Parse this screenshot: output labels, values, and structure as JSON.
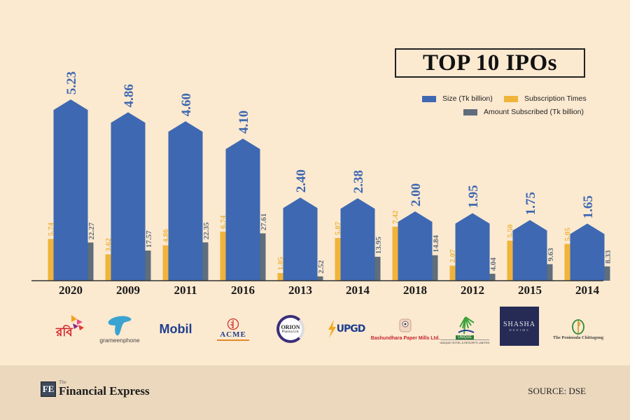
{
  "chart_data": {
    "type": "bar",
    "title": "TOP 10 IPOs",
    "categories": [
      "2020",
      "2009",
      "2011",
      "2016",
      "2013",
      "2014",
      "2018",
      "2012",
      "2015",
      "2014"
    ],
    "series": [
      {
        "name": "Size (Tk billion)",
        "color": "#3e68b1",
        "values": [
          5.23,
          4.86,
          4.6,
          4.1,
          2.4,
          2.38,
          2.0,
          1.95,
          1.75,
          1.65
        ],
        "labels": [
          "5.23",
          "4.86",
          "4.60",
          "4.10",
          "2.40",
          "2.38",
          "2.00",
          "1.95",
          "1.75",
          "1.65"
        ]
      },
      {
        "name": "Subscription Times",
        "color": "#f0b43a",
        "values": [
          5.74,
          3.62,
          4.86,
          6.74,
          1.05,
          5.87,
          7.42,
          2.07,
          5.5,
          5.05
        ],
        "labels": [
          "5.74",
          "3.62",
          "4.86",
          "6.74",
          "1.05",
          "5.87",
          "7.42",
          "2.07",
          "5.50",
          "5.05"
        ]
      },
      {
        "name": "Amount Subscribed (Tk billion)",
        "color": "#5f6d7c",
        "values": [
          22.27,
          17.57,
          22.35,
          27.61,
          2.52,
          13.95,
          14.84,
          4.04,
          9.63,
          8.33
        ],
        "labels": [
          "22.27",
          "17.57",
          "22.35",
          "27.61",
          "2.52",
          "13.95",
          "14.84",
          "4.04",
          "9.63",
          "8.33"
        ]
      }
    ],
    "legend_placement": "top-right",
    "grid": false,
    "xlabel": "",
    "ylabel": ""
  },
  "companies": [
    {
      "name": "রবি",
      "logo": "robi-logo"
    },
    {
      "name": "grameenphone",
      "logo": "grameenphone-logo"
    },
    {
      "name": "Mobil",
      "logo": "mobil-logo"
    },
    {
      "name": "ACME",
      "logo": "acme-logo"
    },
    {
      "name": "ORION",
      "sub": "Pharma Ltd.",
      "logo": "orion-logo"
    },
    {
      "name": "UPGD",
      "logo": "upgd-logo"
    },
    {
      "name": "Bashundhara Paper Mills Ltd.",
      "logo": "bashundhara-logo"
    },
    {
      "name": "UNIQUE",
      "sub": "UNIQUE HOTEL & RESORTS LIMITED",
      "logo": "unique-logo"
    },
    {
      "name": "SHASHA",
      "sub": "DENIMS",
      "logo": "shasha-logo"
    },
    {
      "name": "The Peninsula Chittagong",
      "logo": "peninsula-logo"
    }
  ],
  "footer": {
    "publisher_mark": "FE",
    "publisher_the": "The",
    "publisher_name": "Financial Express",
    "source": "SOURCE: DSE"
  },
  "colors": {
    "background": "#fbe9d0",
    "footer_bg": "#ebd8bd",
    "size": "#3e68b1",
    "subscription": "#f0b43a",
    "amount": "#5f6d7c"
  }
}
